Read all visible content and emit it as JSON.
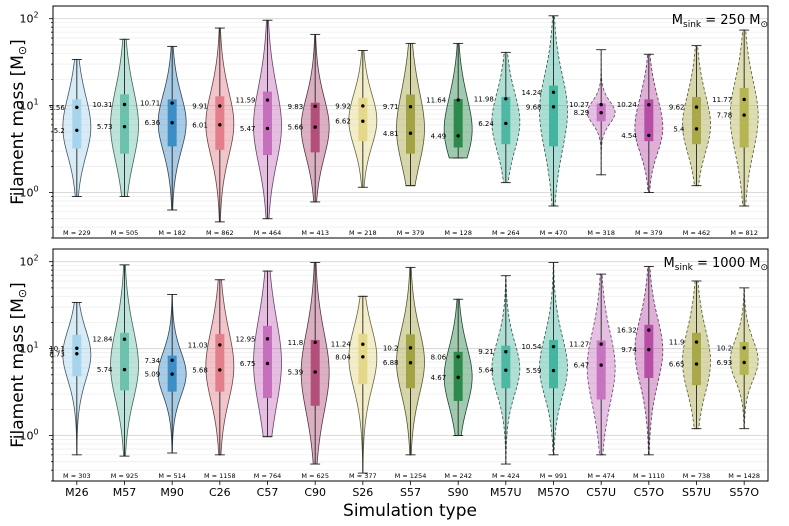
{
  "chart_data": {
    "type": "violin",
    "xlabel": "Simulation type",
    "ylabel": "Filament mass [M",
    "ylabel_sub": "⊙",
    "ylabel_close": "]",
    "yscale": "log",
    "ylim": [
      0.3,
      140
    ],
    "yticks": [
      {
        "value": 1,
        "base": "10",
        "exp": "0"
      },
      {
        "value": 10,
        "base": "10",
        "exp": "1"
      },
      {
        "value": 100,
        "base": "10",
        "exp": "2"
      }
    ],
    "categories": [
      "M26",
      "M57",
      "M90",
      "C26",
      "C57",
      "C90",
      "S26",
      "S57",
      "S90",
      "M57U",
      "M57O",
      "C57U",
      "C57O",
      "S57U",
      "S57O"
    ],
    "colors": [
      "#a6d4ec",
      "#6cc2ad",
      "#3d8ec7",
      "#e27f8a",
      "#c66fbd",
      "#b24f7b",
      "#e6d88a",
      "#a3a343",
      "#2d8a4c",
      "#4fb8a5",
      "#45b5a0",
      "#c774c0",
      "#b84da8",
      "#aaa94a",
      "#b5b554"
    ],
    "edge_colors": [
      "#445566",
      "#446655",
      "#334455",
      "#664444",
      "#664466",
      "#553344",
      "#666644",
      "#555533",
      "#224433",
      "#335544",
      "#335544",
      "#664466",
      "#553355",
      "#555533",
      "#555533"
    ],
    "dashed": [
      false,
      false,
      false,
      false,
      false,
      false,
      false,
      false,
      false,
      true,
      true,
      true,
      true,
      true,
      true
    ],
    "panels": [
      {
        "title_prefix": "M",
        "title_sub": "sink",
        "title_mid": " = 250 M",
        "title_sym": "⊙",
        "stats": [
          {
            "min": 0.9,
            "q1": 3.2,
            "median": 5.2,
            "mean": 9.56,
            "q3": 11.8,
            "max": 34,
            "n_label": "M ≈ 229",
            "median_label": "5.2",
            "mean_label": "9.56"
          },
          {
            "min": 0.9,
            "q1": 2.8,
            "median": 5.73,
            "mean": 10.31,
            "q3": 13.5,
            "max": 58,
            "n_label": "M ≈ 505",
            "median_label": "5.73",
            "mean_label": "10.31"
          },
          {
            "min": 0.63,
            "q1": 3.4,
            "median": 6.36,
            "mean": 10.71,
            "q3": 11.8,
            "max": 48,
            "n_label": "M ≈ 182",
            "median_label": "6.36",
            "mean_label": "10.71"
          },
          {
            "min": 0.46,
            "q1": 3.1,
            "median": 6.01,
            "mean": 9.91,
            "q3": 12.8,
            "max": 78,
            "n_label": "M ≈ 862",
            "median_label": "6.01",
            "mean_label": "9.91"
          },
          {
            "min": 0.5,
            "q1": 2.7,
            "median": 5.47,
            "mean": 11.59,
            "q3": 14.5,
            "max": 96,
            "n_label": "M ≈ 464",
            "median_label": "5.47",
            "mean_label": "11.59"
          },
          {
            "min": 0.78,
            "q1": 2.9,
            "median": 5.66,
            "mean": 9.83,
            "q3": 10.8,
            "max": 66,
            "n_label": "M ≈ 413",
            "median_label": "5.66",
            "mean_label": "9.83"
          },
          {
            "min": 1.15,
            "q1": 3.9,
            "median": 6.62,
            "mean": 9.92,
            "q3": 12.3,
            "max": 43,
            "n_label": "M ≈ 218",
            "median_label": "6.62",
            "mean_label": "9.92"
          },
          {
            "min": 1.2,
            "q1": 2.8,
            "median": 4.81,
            "mean": 9.71,
            "q3": 13.4,
            "max": 52,
            "n_label": "M ≈ 379",
            "median_label": "4.81",
            "mean_label": "9.71"
          },
          {
            "min": 2.5,
            "q1": 3.3,
            "median": 4.49,
            "mean": 11.64,
            "q3": 11.9,
            "max": 52,
            "n_label": "M ≈ 128",
            "median_label": "4.49",
            "mean_label": "11.64"
          },
          {
            "min": 1.3,
            "q1": 3.6,
            "median": 6.24,
            "mean": 11.98,
            "q3": 12.6,
            "max": 41,
            "n_label": "M ≈ 264",
            "median_label": "6.24",
            "mean_label": "11.98"
          },
          {
            "min": 0.7,
            "q1": 3.4,
            "median": 9.68,
            "mean": 14.24,
            "q3": 17,
            "max": 108,
            "n_label": "M ≈ 470",
            "median_label": "9.68",
            "mean_label": "14.24"
          },
          {
            "min": 1.6,
            "q1": 6.6,
            "median": 8.29,
            "mean": 10.27,
            "q3": 10.6,
            "max": 44,
            "n_label": "M ≈ 318",
            "median_label": "8.29",
            "mean_label": "10.27"
          },
          {
            "min": 1.0,
            "q1": 3.9,
            "median": 4.54,
            "mean": 10.24,
            "q3": 11.8,
            "max": 39,
            "n_label": "M ≈ 379",
            "median_label": "4.54",
            "mean_label": "10.24"
          },
          {
            "min": 1.2,
            "q1": 3.6,
            "median": 5.4,
            "mean": 9.62,
            "q3": 12.6,
            "max": 49,
            "n_label": "M ≈ 462",
            "median_label": "5.4",
            "mean_label": "9.62"
          },
          {
            "min": 0.7,
            "q1": 3.3,
            "median": 7.78,
            "mean": 11.77,
            "q3": 16,
            "max": 74,
            "n_label": "M ≈ 812",
            "median_label": "7.78",
            "mean_label": "11.77"
          }
        ]
      },
      {
        "title_prefix": "M",
        "title_sub": "sink",
        "title_mid": " = 1000 M",
        "title_sym": "⊙",
        "stats": [
          {
            "min": 0.6,
            "q1": 4.8,
            "median": 8.73,
            "mean": 10.1,
            "q3": 14.4,
            "max": 34,
            "n_label": "M ≈ 303",
            "median_label": "8.73",
            "mean_label": "10.1"
          },
          {
            "min": 0.58,
            "q1": 3.3,
            "median": 5.74,
            "mean": 12.84,
            "q3": 15.2,
            "max": 92,
            "n_label": "M ≈ 925",
            "median_label": "5.74",
            "mean_label": "12.84"
          },
          {
            "min": 0.63,
            "q1": 3.2,
            "median": 5.09,
            "mean": 7.34,
            "q3": 8.3,
            "max": 42,
            "n_label": "M ≈ 514",
            "median_label": "5.09",
            "mean_label": "7.34"
          },
          {
            "min": 0.6,
            "q1": 3.2,
            "median": 5.68,
            "mean": 11.03,
            "q3": 14.7,
            "max": 62,
            "n_label": "M ≈ 1158",
            "median_label": "5.68",
            "mean_label": "11.03"
          },
          {
            "min": 0.97,
            "q1": 2.7,
            "median": 6.75,
            "mean": 12.95,
            "q3": 18.3,
            "max": 78,
            "n_label": "M ≈ 764",
            "median_label": "6.75",
            "mean_label": "12.95"
          },
          {
            "min": 0.47,
            "q1": 2.2,
            "median": 5.39,
            "mean": 11.8,
            "q3": 12.6,
            "max": 98,
            "n_label": "M ≈ 625",
            "median_label": "5.39",
            "mean_label": "11.8"
          },
          {
            "min": 0.37,
            "q1": 3.9,
            "median": 8.04,
            "mean": 11.24,
            "q3": 14.8,
            "max": 40,
            "n_label": "M ≈ 377",
            "median_label": "8.04",
            "mean_label": "11.24"
          },
          {
            "min": 0.6,
            "q1": 3.5,
            "median": 6.88,
            "mean": 10.2,
            "q3": 14.6,
            "max": 86,
            "n_label": "M ≈ 1254",
            "median_label": "6.88",
            "mean_label": "10.2"
          },
          {
            "min": 1.0,
            "q1": 2.5,
            "median": 4.67,
            "mean": 8.06,
            "q3": 9.2,
            "max": 37,
            "n_label": "M ≈ 242",
            "median_label": "4.67",
            "mean_label": "8.06"
          },
          {
            "min": 0.47,
            "q1": 3.5,
            "median": 5.64,
            "mean": 9.21,
            "q3": 10.8,
            "max": 69,
            "n_label": "M ≈ 424",
            "median_label": "5.64",
            "mean_label": "9.21"
          },
          {
            "min": 0.6,
            "q1": 3.5,
            "median": 5.59,
            "mean": 10.54,
            "q3": 12.6,
            "max": 98,
            "n_label": "M ≈ 991",
            "median_label": "5.59",
            "mean_label": "10.54"
          },
          {
            "min": 0.6,
            "q1": 2.6,
            "median": 6.47,
            "mean": 11.27,
            "q3": 12.4,
            "max": 72,
            "n_label": "M ≈ 474",
            "median_label": "6.47",
            "mean_label": "11.27"
          },
          {
            "min": 0.6,
            "q1": 4.6,
            "median": 9.74,
            "mean": 16.32,
            "q3": 18.8,
            "max": 88,
            "n_label": "M ≈ 1110",
            "median_label": "9.74",
            "mean_label": "16.32"
          },
          {
            "min": 1.2,
            "q1": 3.8,
            "median": 6.65,
            "mean": 11.9,
            "q3": 15.2,
            "max": 60,
            "n_label": "M ≈ 738",
            "median_label": "6.65",
            "mean_label": "11.9"
          },
          {
            "min": 1.2,
            "q1": 5.0,
            "median": 6.93,
            "mean": 10.2,
            "q3": 11.9,
            "max": 50,
            "n_label": "M ≈ 1428",
            "median_label": "6.93",
            "mean_label": "10.2"
          }
        ]
      }
    ]
  }
}
